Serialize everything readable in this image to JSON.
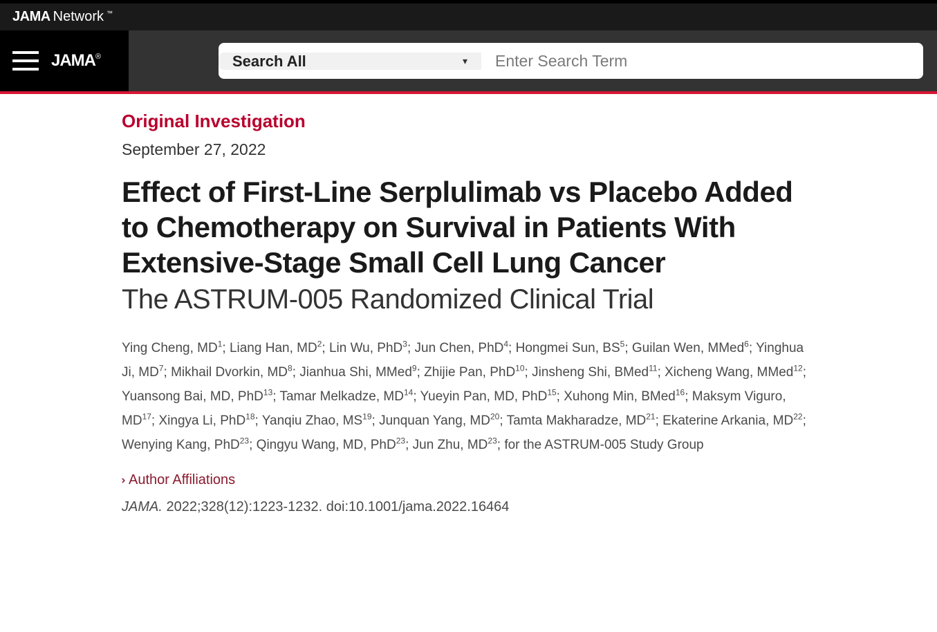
{
  "header": {
    "network_brand": "JAMA",
    "network_suffix": "Network",
    "tm": "™",
    "site_brand": "JAMA",
    "reg": "®"
  },
  "search": {
    "select_label": "Search All",
    "placeholder": "Enter Search Term"
  },
  "article": {
    "category": "Original Investigation",
    "date": "September 27, 2022",
    "title": "Effect of First-Line Serplulimab vs Placebo Added to Chemotherapy on Survival in Patients With Extensive-Stage Small Cell Lung Cancer",
    "subtitle": "The ASTRUM-005 Randomized Clinical Trial",
    "affiliations_label": "Author Affiliations",
    "citation_journal": "JAMA.",
    "citation_rest": " 2022;328(12):1223-1232. doi:10.1001/jama.2022.16464"
  },
  "authors": [
    {
      "name": "Ying Cheng, MD",
      "aff": "1"
    },
    {
      "name": "Liang Han, MD",
      "aff": "2"
    },
    {
      "name": "Lin Wu, PhD",
      "aff": "3"
    },
    {
      "name": "Jun Chen, PhD",
      "aff": "4"
    },
    {
      "name": "Hongmei Sun, BS",
      "aff": "5"
    },
    {
      "name": "Guilan Wen, MMed",
      "aff": "6"
    },
    {
      "name": "Yinghua Ji, MD",
      "aff": "7"
    },
    {
      "name": "Mikhail Dvorkin, MD",
      "aff": "8"
    },
    {
      "name": "Jianhua Shi, MMed",
      "aff": "9"
    },
    {
      "name": "Zhijie Pan, PhD",
      "aff": "10"
    },
    {
      "name": "Jinsheng Shi, BMed",
      "aff": "11"
    },
    {
      "name": "Xicheng Wang, MMed",
      "aff": "12"
    },
    {
      "name": "Yuansong Bai, MD, PhD",
      "aff": "13"
    },
    {
      "name": "Tamar Melkadze, MD",
      "aff": "14"
    },
    {
      "name": "Yueyin Pan, MD, PhD",
      "aff": "15"
    },
    {
      "name": "Xuhong Min, BMed",
      "aff": "16"
    },
    {
      "name": "Maksym Viguro, MD",
      "aff": "17"
    },
    {
      "name": "Xingya Li, PhD",
      "aff": "18"
    },
    {
      "name": "Yanqiu Zhao, MS",
      "aff": "19"
    },
    {
      "name": "Junquan Yang, MD",
      "aff": "20"
    },
    {
      "name": "Tamta Makharadze, MD",
      "aff": "21"
    },
    {
      "name": "Ekaterine Arkania, MD",
      "aff": "22"
    },
    {
      "name": "Wenying Kang, PhD",
      "aff": "23"
    },
    {
      "name": "Qingyu Wang, MD, PhD",
      "aff": "23"
    },
    {
      "name": "Jun Zhu, MD",
      "aff": "23"
    }
  ],
  "authors_suffix": "; for the ASTRUM-005 Study Group",
  "colors": {
    "accent": "#d71635",
    "category": "#b8002e",
    "top_bg": "#1a1a1a",
    "nav_bg": "#333333",
    "menu_bg": "#000000"
  }
}
